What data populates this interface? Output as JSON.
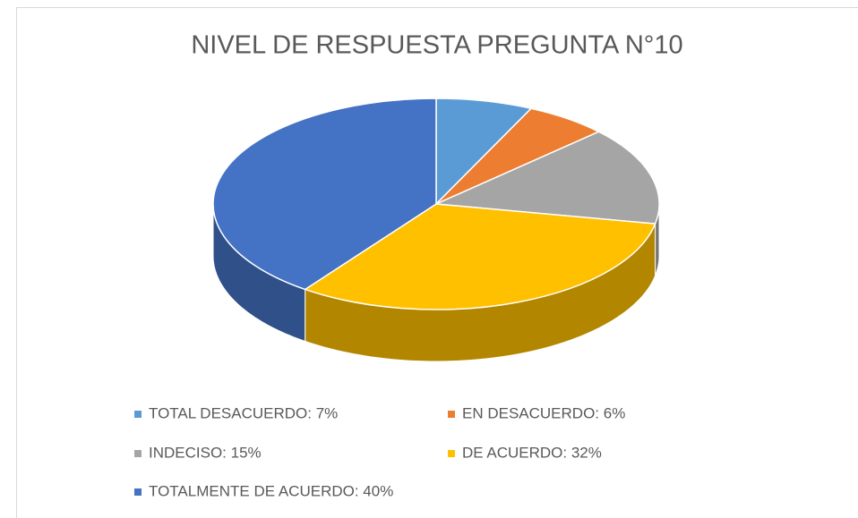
{
  "chart_data": {
    "type": "pie",
    "title": "NIVEL DE RESPUESTA PREGUNTA N°10",
    "categories": [
      "TOTAL DESACUERDO: 7%",
      "EN DESACUERDO: 6%",
      "INDECISO: 15%",
      "DE ACUERDO: 32%",
      "TOTALMENTE DE ACUERDO: 40%"
    ],
    "values": [
      7,
      6,
      15,
      32,
      40
    ],
    "colors": [
      "#5b9bd5",
      "#ed7d31",
      "#a5a5a5",
      "#ffc000",
      "#4472c4"
    ],
    "legend": "bottom"
  }
}
